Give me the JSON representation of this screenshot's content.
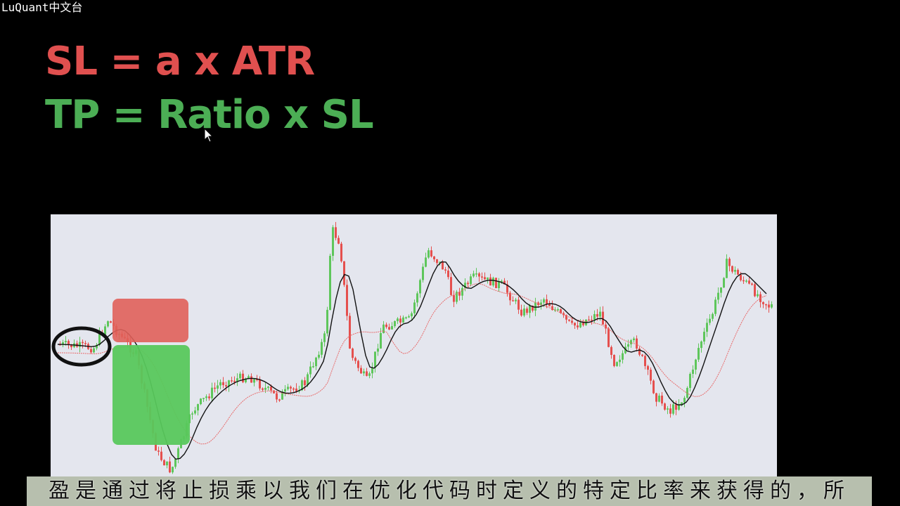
{
  "watermark": "LuQuant中文台",
  "formulas": {
    "stop_loss": "SL = a x ATR",
    "take_profit": "TP = Ratio x SL"
  },
  "colors": {
    "stop_loss": "#e0504f",
    "take_profit": "#4cae55",
    "bull_candle": "#5ec65b",
    "bear_candle": "#e5504e",
    "sl_box": "#e0605a",
    "tp_box": "#58c85c",
    "chart_bg": "#e4e6ee",
    "slow_ma": "#e86a6a",
    "fast_ma": "#111111"
  },
  "chart": {
    "type": "candlestick",
    "annotations": [
      "stop-loss-zone",
      "take-profit-zone",
      "entry-highlight-circle"
    ]
  },
  "subtitle": "盈是通过将止损乘以我们在优化代码时定义的特定比率来获得的，所"
}
